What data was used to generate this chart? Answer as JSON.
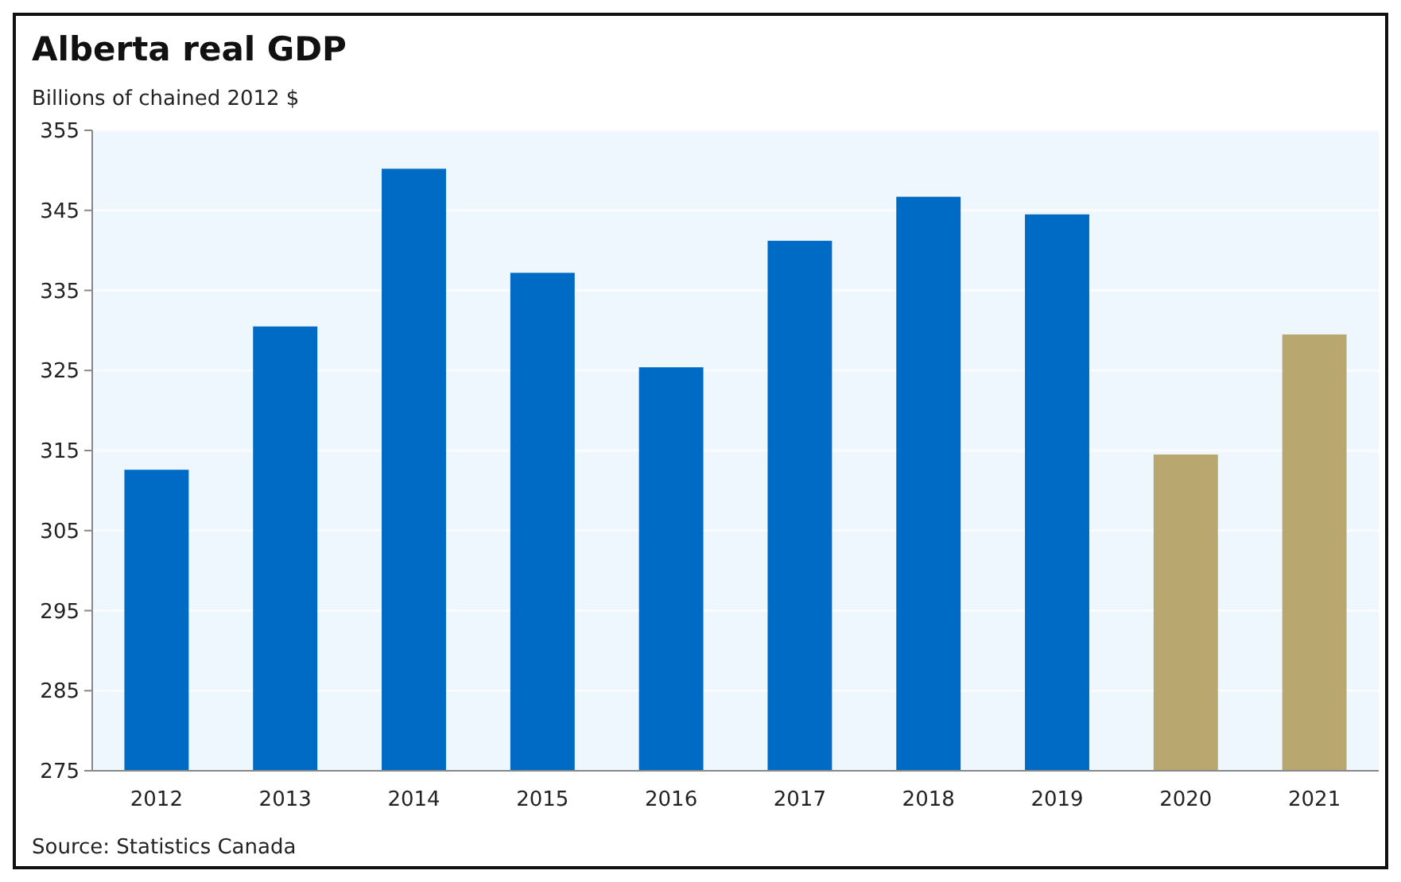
{
  "chart_data": {
    "type": "bar",
    "title": "Alberta real GDP",
    "subtitle": "Billions of chained 2012 $",
    "categories": [
      "2012",
      "2013",
      "2014",
      "2015",
      "2016",
      "2017",
      "2018",
      "2019",
      "2020",
      "2021"
    ],
    "values": [
      312.6,
      330.5,
      350.2,
      337.2,
      325.4,
      341.2,
      346.7,
      344.5,
      314.5,
      329.5
    ],
    "colors": [
      "#006bc4",
      "#006bc4",
      "#006bc4",
      "#006bc4",
      "#006bc4",
      "#006bc4",
      "#006bc4",
      "#006bc4",
      "#b8a870",
      "#b8a870"
    ],
    "ylim": [
      275,
      355
    ],
    "yticks": [
      275,
      285,
      295,
      305,
      315,
      325,
      335,
      345,
      355
    ],
    "grid": "y",
    "annotations": [
      "Source: Statistics Canada"
    ]
  }
}
